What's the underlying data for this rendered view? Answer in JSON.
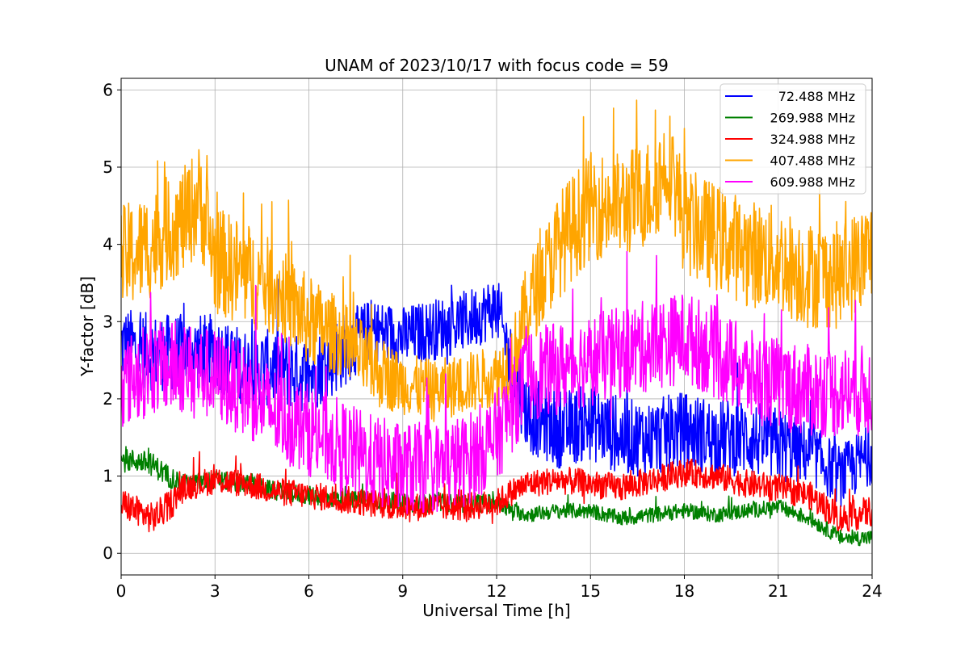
{
  "chart_data": {
    "type": "line",
    "title": "UNAM of 2023/10/17 with focus code = 59",
    "xlabel": "Universal Time [h]",
    "ylabel": "Y-factor [dB]",
    "xlim": [
      0,
      24
    ],
    "ylim": [
      -0.28,
      6.15
    ],
    "x_ticks": [
      0,
      3,
      6,
      9,
      12,
      15,
      18,
      21,
      24
    ],
    "y_ticks": [
      0,
      1,
      2,
      3,
      4,
      5,
      6
    ],
    "grid": true,
    "legend_position": "top-right",
    "series": [
      {
        "name": "72.488 MHz",
        "color": "#0000ff",
        "x": [
          0,
          1,
          2,
          3,
          4,
          5,
          6,
          7,
          8,
          9,
          10,
          11,
          12,
          12.5,
          13,
          14,
          15,
          16,
          17,
          18,
          19,
          20,
          21,
          22,
          23,
          24
        ],
        "y": [
          2.7,
          2.6,
          2.6,
          2.6,
          2.4,
          2.4,
          2.3,
          2.6,
          2.9,
          2.8,
          2.9,
          3.0,
          3.2,
          2.4,
          1.8,
          1.6,
          1.7,
          1.5,
          1.5,
          1.6,
          1.5,
          1.5,
          1.4,
          1.3,
          1.0,
          1.3
        ],
        "band": [
          0.5,
          0.5,
          0.5,
          0.5,
          0.5,
          0.5,
          0.5,
          0.5,
          0.4,
          0.4,
          0.4,
          0.4,
          0.4,
          0.5,
          0.5,
          0.5,
          0.5,
          0.5,
          0.5,
          0.5,
          0.5,
          0.5,
          0.5,
          0.4,
          0.4,
          0.4
        ]
      },
      {
        "name": "269.988 MHz",
        "color": "#008000",
        "x": [
          0,
          0.5,
          1,
          1.5,
          2,
          3,
          4,
          5,
          6,
          7,
          8,
          9,
          10,
          11,
          12,
          12.5,
          13,
          14,
          15,
          16,
          17,
          18,
          19,
          20,
          21,
          22,
          23,
          24
        ],
        "y": [
          1.2,
          1.2,
          1.15,
          1.0,
          0.9,
          0.95,
          0.9,
          0.8,
          0.75,
          0.7,
          0.7,
          0.65,
          0.65,
          0.65,
          0.65,
          0.55,
          0.5,
          0.55,
          0.55,
          0.45,
          0.5,
          0.55,
          0.5,
          0.55,
          0.6,
          0.45,
          0.2,
          0.2
        ],
        "band": [
          0.15,
          0.15,
          0.15,
          0.15,
          0.12,
          0.12,
          0.12,
          0.12,
          0.12,
          0.12,
          0.12,
          0.12,
          0.12,
          0.12,
          0.12,
          0.1,
          0.1,
          0.1,
          0.1,
          0.1,
          0.1,
          0.1,
          0.1,
          0.1,
          0.1,
          0.1,
          0.1,
          0.1
        ]
      },
      {
        "name": "324.988 MHz",
        "color": "#ff0000",
        "x": [
          0,
          0.5,
          1,
          1.5,
          2,
          3,
          4,
          5,
          6,
          7,
          8,
          9,
          10,
          11,
          12,
          12.5,
          13,
          14,
          15,
          16,
          17,
          18,
          19,
          20,
          21,
          22,
          23,
          24
        ],
        "y": [
          0.65,
          0.55,
          0.45,
          0.6,
          0.85,
          0.95,
          0.9,
          0.8,
          0.75,
          0.7,
          0.65,
          0.6,
          0.6,
          0.6,
          0.65,
          0.8,
          0.9,
          0.95,
          0.9,
          0.85,
          0.95,
          1.05,
          1.0,
          0.9,
          0.85,
          0.75,
          0.45,
          0.55
        ],
        "band": [
          0.2,
          0.2,
          0.2,
          0.2,
          0.18,
          0.18,
          0.18,
          0.18,
          0.18,
          0.18,
          0.18,
          0.18,
          0.18,
          0.18,
          0.18,
          0.18,
          0.18,
          0.18,
          0.18,
          0.18,
          0.18,
          0.18,
          0.18,
          0.18,
          0.18,
          0.18,
          0.2,
          0.2
        ]
      },
      {
        "name": "407.488 MHz",
        "color": "#ffa500",
        "x": [
          0,
          0.5,
          1,
          1.5,
          2,
          2.5,
          3,
          4,
          5,
          6,
          7,
          8,
          9,
          10,
          11,
          12,
          12.5,
          13,
          13.5,
          14,
          15,
          16,
          17,
          17.5,
          18,
          19,
          20,
          21,
          22,
          23,
          24
        ],
        "y": [
          3.8,
          3.9,
          4.0,
          4.2,
          4.3,
          4.6,
          3.8,
          3.6,
          3.4,
          3.0,
          2.8,
          2.4,
          2.2,
          2.1,
          2.2,
          2.3,
          2.5,
          3.2,
          3.6,
          4.0,
          4.5,
          4.5,
          4.7,
          5.1,
          4.3,
          4.1,
          3.9,
          3.8,
          3.6,
          3.6,
          3.9
        ],
        "band": [
          0.7,
          0.7,
          0.7,
          0.7,
          0.7,
          0.7,
          0.7,
          0.7,
          0.6,
          0.6,
          0.5,
          0.5,
          0.4,
          0.4,
          0.4,
          0.4,
          0.5,
          0.6,
          0.6,
          0.7,
          0.7,
          0.7,
          0.7,
          0.7,
          0.7,
          0.7,
          0.7,
          0.7,
          0.7,
          0.7,
          0.7
        ]
      },
      {
        "name": "609.988 MHz",
        "color": "#ff00ff",
        "x": [
          0,
          1,
          2,
          3,
          4,
          5,
          6,
          7,
          8,
          9,
          10,
          11,
          12,
          13,
          14,
          15,
          16,
          17,
          18,
          19,
          20,
          21,
          22,
          23,
          24
        ],
        "y": [
          2.2,
          2.4,
          2.4,
          2.3,
          2.1,
          1.8,
          1.6,
          1.4,
          1.2,
          1.1,
          1.1,
          1.2,
          1.5,
          2.3,
          2.4,
          2.5,
          2.6,
          2.7,
          2.8,
          2.6,
          2.3,
          2.2,
          2.1,
          2.1,
          2.1
        ],
        "band": [
          0.6,
          0.6,
          0.6,
          0.6,
          0.6,
          0.6,
          0.6,
          0.6,
          0.6,
          0.6,
          0.6,
          0.6,
          0.6,
          0.6,
          0.6,
          0.6,
          0.6,
          0.6,
          0.6,
          0.6,
          0.6,
          0.6,
          0.6,
          0.6,
          0.6
        ]
      }
    ]
  }
}
